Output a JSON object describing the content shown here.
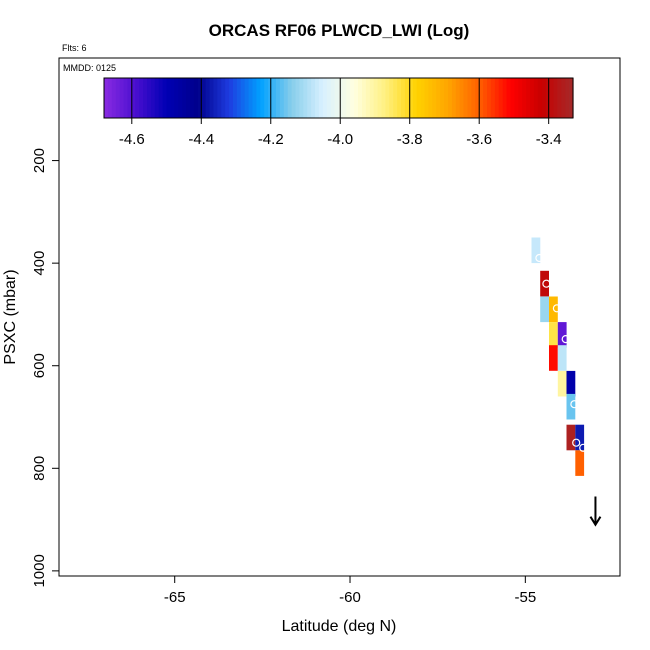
{
  "chart_data": {
    "type": "heatmap",
    "title": "ORCAS RF06 PLWCD_LWI (Log)",
    "flights_note": "Flts: 6",
    "date_note": "MMDD: 0125",
    "xlabel": "Latitude (deg N)",
    "ylabel": "PSXC (mbar)",
    "xlim": [
      -68.3,
      -52.3
    ],
    "ylim": [
      1010,
      0
    ],
    "x_ticks": [
      -65,
      -60,
      -55
    ],
    "x_tick_labels": [
      "-65",
      "-60",
      "-55"
    ],
    "y_ticks": [
      200,
      400,
      600,
      800,
      1000
    ],
    "y_tick_labels": [
      "200",
      "400",
      "600",
      "800",
      "1000"
    ],
    "colorbar": {
      "range": [
        -4.68,
        -3.33
      ],
      "ticks": [
        -4.6,
        -4.4,
        -4.2,
        -4.0,
        -3.8,
        -3.6,
        -3.4
      ],
      "tick_labels": [
        "-4.6",
        "-4.4",
        "-4.2",
        "-4.0",
        "-3.8",
        "-3.6",
        "-3.4"
      ],
      "colors": [
        "#8a2be2",
        "#4b0fd0",
        "#0000b4",
        "#00008b",
        "#1e3ce0",
        "#00a0ff",
        "#87ceeb",
        "#d8f0ff",
        "#ffffe0",
        "#fff080",
        "#ffd200",
        "#ffa500",
        "#ff6000",
        "#ff0000",
        "#c80000",
        "#a52a2a"
      ]
    },
    "cells": [
      {
        "lat": -54.7,
        "p": 375,
        "value": -4.07,
        "dlat": 0.25,
        "dp": 50
      },
      {
        "lat": -54.45,
        "p": 440,
        "value": -3.4,
        "dlat": 0.25,
        "dp": 50
      },
      {
        "lat": -54.45,
        "p": 490,
        "value": -4.12,
        "dlat": 0.25,
        "dp": 50
      },
      {
        "lat": -54.2,
        "p": 490,
        "value": -3.73,
        "dlat": 0.25,
        "dp": 50
      },
      {
        "lat": -54.2,
        "p": 540,
        "value": -3.83,
        "dlat": 0.25,
        "dp": 50
      },
      {
        "lat": -53.95,
        "p": 540,
        "value": -4.62,
        "dlat": 0.25,
        "dp": 50
      },
      {
        "lat": -54.2,
        "p": 585,
        "value": -3.52,
        "dlat": 0.25,
        "dp": 50
      },
      {
        "lat": -53.95,
        "p": 585,
        "value": -4.08,
        "dlat": 0.25,
        "dp": 50
      },
      {
        "lat": -53.95,
        "p": 635,
        "value": -3.9,
        "dlat": 0.25,
        "dp": 50
      },
      {
        "lat": -53.7,
        "p": 635,
        "value": -4.48,
        "dlat": 0.25,
        "dp": 50
      },
      {
        "lat": -53.7,
        "p": 680,
        "value": -4.16,
        "dlat": 0.25,
        "dp": 50
      },
      {
        "lat": -53.7,
        "p": 740,
        "value": -3.35,
        "dlat": 0.25,
        "dp": 50
      },
      {
        "lat": -53.45,
        "p": 740,
        "value": -4.37,
        "dlat": 0.25,
        "dp": 50
      },
      {
        "lat": -53.45,
        "p": 790,
        "value": -3.6,
        "dlat": 0.25,
        "dp": 50
      }
    ],
    "track_points": [
      {
        "lat": -54.6,
        "p": 390
      },
      {
        "lat": -54.4,
        "p": 440
      },
      {
        "lat": -54.1,
        "p": 488
      },
      {
        "lat": -53.85,
        "p": 548
      },
      {
        "lat": -53.6,
        "p": 675
      },
      {
        "lat": -53.55,
        "p": 750
      },
      {
        "lat": -53.35,
        "p": 760
      }
    ],
    "direction_arrow": {
      "lat": -53.0,
      "p_start": 855,
      "p_end": 910
    }
  }
}
